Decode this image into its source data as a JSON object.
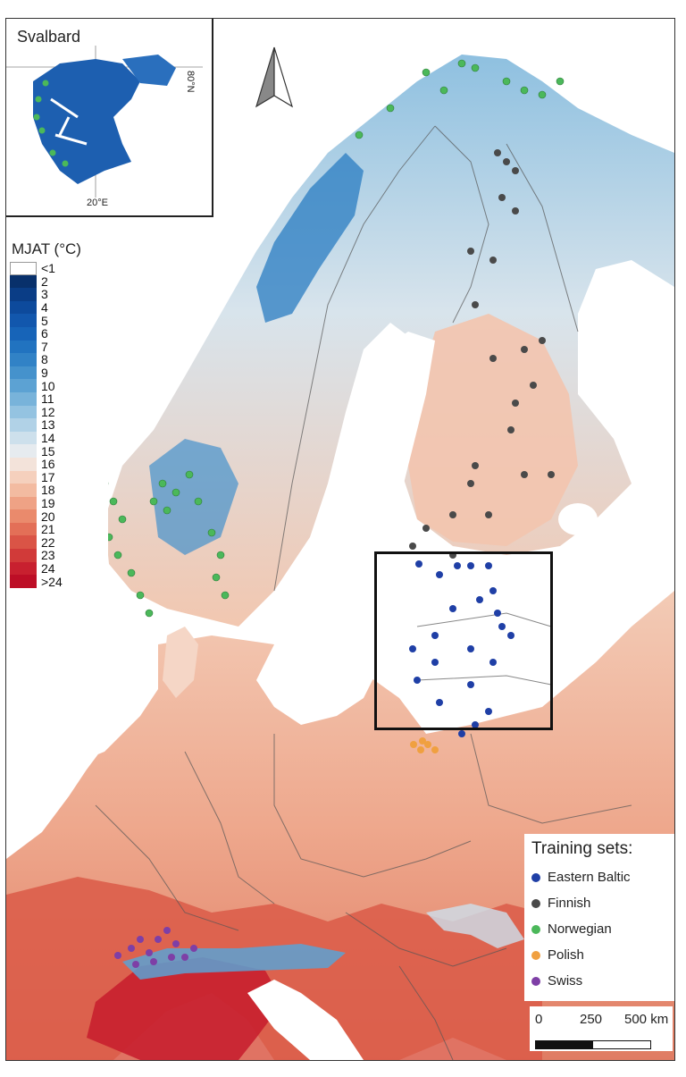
{
  "inset": {
    "title": "Svalbard",
    "lat_label": "80°N",
    "lon_label": "20°E"
  },
  "legend": {
    "title": "MJAT (°C)",
    "items": [
      {
        "label": "<1",
        "color": "#ffffff"
      },
      {
        "label": "2",
        "color": "#08306b"
      },
      {
        "label": "3",
        "color": "#0a3d86"
      },
      {
        "label": "4",
        "color": "#0d4a9c"
      },
      {
        "label": "5",
        "color": "#1257ad"
      },
      {
        "label": "6",
        "color": "#1764b8"
      },
      {
        "label": "7",
        "color": "#2173c0"
      },
      {
        "label": "8",
        "color": "#3182c6"
      },
      {
        "label": "9",
        "color": "#4592cc"
      },
      {
        "label": "10",
        "color": "#5ca2d3"
      },
      {
        "label": "11",
        "color": "#78b3da"
      },
      {
        "label": "12",
        "color": "#94c3e1"
      },
      {
        "label": "13",
        "color": "#b1d2e7"
      },
      {
        "label": "14",
        "color": "#cde0ec"
      },
      {
        "label": "15",
        "color": "#e6ebef"
      },
      {
        "label": "16",
        "color": "#f3e3da"
      },
      {
        "label": "17",
        "color": "#f5d0bd"
      },
      {
        "label": "18",
        "color": "#f3bba1"
      },
      {
        "label": "19",
        "color": "#efa285"
      },
      {
        "label": "20",
        "color": "#ea8a6c"
      },
      {
        "label": "21",
        "color": "#e36f57"
      },
      {
        "label": "22",
        "color": "#da5446"
      },
      {
        "label": "23",
        "color": "#d13a39"
      },
      {
        "label": "24",
        "color": "#c8202f"
      },
      {
        "label": ">24",
        "color": "#bd0e26"
      }
    ]
  },
  "training_sets": {
    "title": "Training sets:",
    "items": [
      {
        "label": "Eastern Baltic",
        "color": "#1f3fa6"
      },
      {
        "label": "Finnish",
        "color": "#4a4a4a"
      },
      {
        "label": "Norwegian",
        "color": "#4bb85a"
      },
      {
        "label": "Polish",
        "color": "#f0a040"
      },
      {
        "label": "Swiss",
        "color": "#7e3fa6"
      }
    ]
  },
  "scale_bar": {
    "labels": [
      "0",
      "250",
      "500 km"
    ]
  },
  "colors": {
    "sea": "#ffffff",
    "border": "#555555",
    "box": "#111111"
  }
}
